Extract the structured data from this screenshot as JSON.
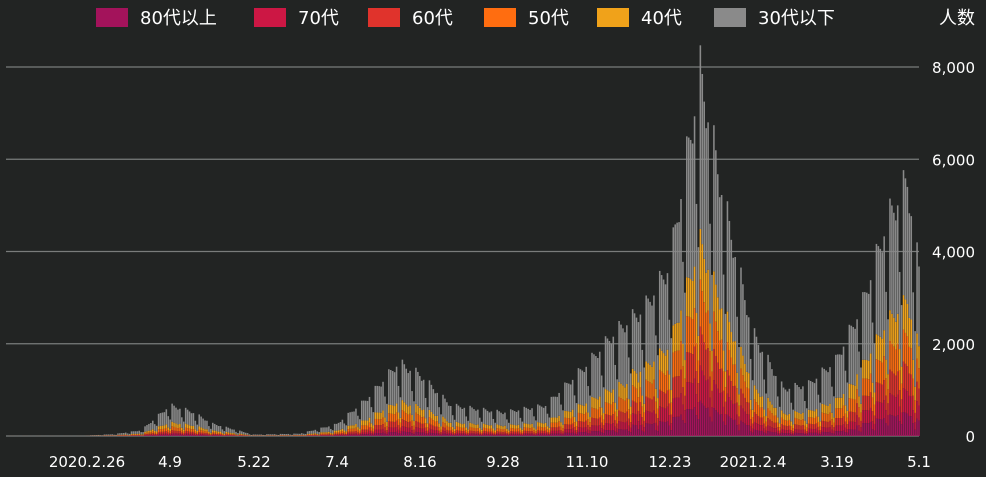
{
  "chart_data": {
    "type": "bar",
    "stacked": true,
    "title": "",
    "xlabel": "",
    "ylabel": "人数",
    "ylim": [
      0,
      8000
    ],
    "yticks": [
      "0",
      "2,000",
      "4,000",
      "6,000",
      "8,000"
    ],
    "grid": true,
    "legend": "top",
    "x_tick_labels": [
      "2020.2.26",
      "4.9",
      "5.22",
      "7.4",
      "8.16",
      "9.28",
      "11.10",
      "12.23",
      "2021.2.4",
      "3.19",
      "5.1"
    ],
    "series": [
      {
        "name": "80代以上",
        "color": "#a3135b"
      },
      {
        "name": "70代",
        "color": "#cc1744"
      },
      {
        "name": "60代",
        "color": "#e0332c"
      },
      {
        "name": "50代",
        "color": "#ff6d10"
      },
      {
        "name": "40代",
        "color": "#f0a21a"
      },
      {
        "name": "30代以下",
        "color": "#8a8a8a"
      }
    ],
    "approx_weekly_totals": [
      {
        "date": "2020.2.26",
        "total": 10
      },
      {
        "date": "2020.3.11",
        "total": 40
      },
      {
        "date": "2020.3.25",
        "total": 120
      },
      {
        "date": "2020.4.9",
        "total": 650
      },
      {
        "date": "2020.4.20",
        "total": 520
      },
      {
        "date": "2020.5.1",
        "total": 260
      },
      {
        "date": "2020.5.22",
        "total": 30
      },
      {
        "date": "2020.6.15",
        "total": 50
      },
      {
        "date": "2020.7.4",
        "total": 250
      },
      {
        "date": "2020.7.20",
        "total": 800
      },
      {
        "date": "2020.8.5",
        "total": 1550
      },
      {
        "date": "2020.8.16",
        "total": 1300
      },
      {
        "date": "2020.9.1",
        "total": 650
      },
      {
        "date": "2020.9.28",
        "total": 500
      },
      {
        "date": "2020.10.20",
        "total": 650
      },
      {
        "date": "2020.11.10",
        "total": 1500
      },
      {
        "date": "2020.11.25",
        "total": 2200
      },
      {
        "date": "2020.12.10",
        "total": 2700
      },
      {
        "date": "2020.12.23",
        "total": 3600
      },
      {
        "date": "2021.1.8",
        "total": 7700
      },
      {
        "date": "2021.1.20",
        "total": 5000
      },
      {
        "date": "2021.2.4",
        "total": 2200
      },
      {
        "date": "2021.2.20",
        "total": 1000
      },
      {
        "date": "2021.3.5",
        "total": 1100
      },
      {
        "date": "2021.3.19",
        "total": 1600
      },
      {
        "date": "2021.4.1",
        "total": 2700
      },
      {
        "date": "2021.4.15",
        "total": 4600
      },
      {
        "date": "2021.4.25",
        "total": 5400
      },
      {
        "date": "2021.5.1",
        "total": 3500
      }
    ]
  }
}
